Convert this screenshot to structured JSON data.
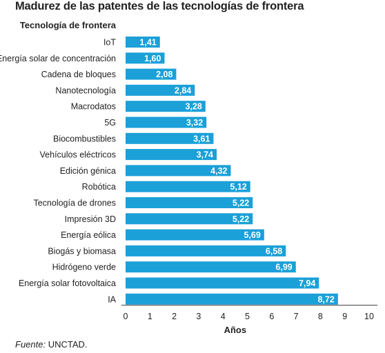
{
  "title": "Madurez de las patentes de las tecnologías de frontera",
  "source": {
    "label": "Fuente:",
    "value": "UNCTAD."
  },
  "chart_data": {
    "type": "bar",
    "orientation": "horizontal",
    "title": "Madurez de las patentes de las tecnologías de frontera",
    "category_header": "Tecnología de frontera",
    "xlabel": "Años",
    "ylabel": "",
    "xlim": [
      0,
      10
    ],
    "xticks": [
      "0",
      "1",
      "2",
      "3",
      "4",
      "5",
      "6",
      "7",
      "8",
      "9",
      "10"
    ],
    "bar_color": "#1ba0d8",
    "grid": false,
    "categories": [
      "IoT",
      "Energía solar de concentración",
      "Cadena de bloques",
      "Nanotecnología",
      "Macrodatos",
      "5G",
      "Biocombustibles",
      "Vehículos eléctricos",
      "Edición génica",
      "Robótica",
      "Tecnología de drones",
      "Impresión 3D",
      "Energía eólica",
      "Biogás y biomasa",
      "Hidrógeno verde",
      "Energía solar fotovoltaica",
      "IA"
    ],
    "values": [
      1.41,
      1.6,
      2.08,
      2.84,
      3.28,
      3.32,
      3.61,
      3.74,
      4.32,
      5.12,
      5.22,
      5.22,
      5.69,
      6.58,
      6.99,
      7.94,
      8.72
    ],
    "value_labels": [
      "1,41",
      "1,60",
      "2,08",
      "2,84",
      "3,28",
      "3,32",
      "3,61",
      "3,74",
      "4,32",
      "5,12",
      "5,22",
      "5,22",
      "5,69",
      "6,58",
      "6,99",
      "7,94",
      "8,72"
    ]
  }
}
